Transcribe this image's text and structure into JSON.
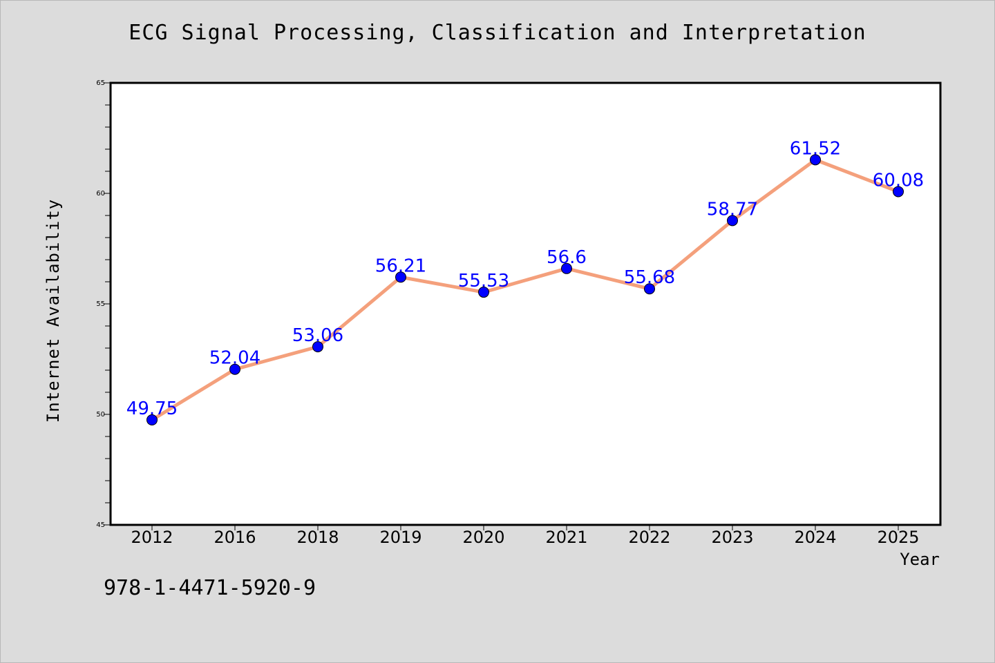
{
  "chart_data": {
    "type": "line",
    "title": "ECG Signal Processing, Classification and Interpretation",
    "xlabel": "Year",
    "ylabel": "Internet Availability",
    "categories": [
      "2012",
      "2016",
      "2018",
      "2019",
      "2020",
      "2021",
      "2022",
      "2023",
      "2024",
      "2025"
    ],
    "series": [
      {
        "values": [
          49.75,
          52.04,
          53.06,
          56.21,
          55.53,
          56.6,
          55.68,
          58.77,
          61.52,
          60.08
        ],
        "data_labels": [
          "49.75",
          "52.04",
          "53.06",
          "56.21",
          "55.53",
          "56.6",
          "55.68",
          "58.77",
          "61.52",
          "60.08"
        ],
        "line_color": "#f4a07c",
        "marker_color": "#0000ff"
      }
    ],
    "ylim": [
      45,
      65
    ],
    "yticks": [
      "45",
      "50",
      "55",
      "60",
      "65"
    ],
    "grid": false,
    "legend": "none"
  },
  "footer": {
    "isbn": "978-1-4471-5920-9"
  },
  "colors": {
    "background": "#dcdcdc",
    "plot_area": "#ffffff",
    "line": "#f4a07c",
    "marker": "#0000ff",
    "data_label": "#0000ff"
  }
}
